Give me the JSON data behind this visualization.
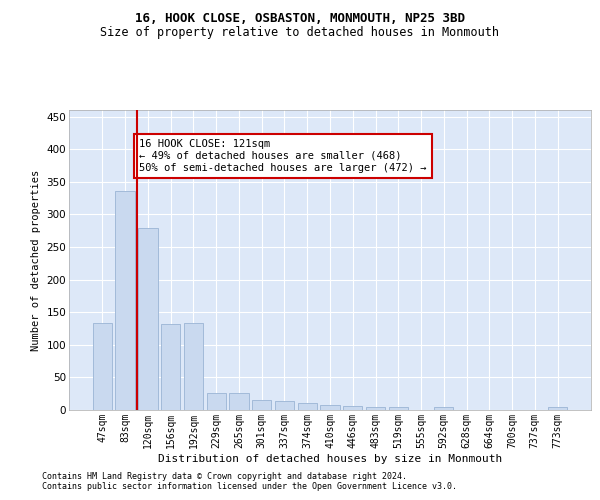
{
  "title1": "16, HOOK CLOSE, OSBASTON, MONMOUTH, NP25 3BD",
  "title2": "Size of property relative to detached houses in Monmouth",
  "xlabel": "Distribution of detached houses by size in Monmouth",
  "ylabel": "Number of detached properties",
  "categories": [
    "47sqm",
    "83sqm",
    "120sqm",
    "156sqm",
    "192sqm",
    "229sqm",
    "265sqm",
    "301sqm",
    "337sqm",
    "374sqm",
    "410sqm",
    "446sqm",
    "483sqm",
    "519sqm",
    "555sqm",
    "592sqm",
    "628sqm",
    "664sqm",
    "700sqm",
    "737sqm",
    "773sqm"
  ],
  "values": [
    133,
    336,
    279,
    132,
    133,
    26,
    26,
    15,
    14,
    11,
    7,
    6,
    5,
    4,
    0,
    4,
    0,
    0,
    0,
    0,
    4
  ],
  "bar_color": "#c9d9ef",
  "bar_edge_color": "#9ab4d4",
  "vline_color": "#cc0000",
  "vline_x_idx": 1,
  "annotation_text": "16 HOOK CLOSE: 121sqm\n← 49% of detached houses are smaller (468)\n50% of semi-detached houses are larger (472) →",
  "annotation_box_color": "#ffffff",
  "annotation_box_edge": "#cc0000",
  "footnote1": "Contains HM Land Registry data © Crown copyright and database right 2024.",
  "footnote2": "Contains public sector information licensed under the Open Government Licence v3.0.",
  "background_color": "#ffffff",
  "plot_bg_color": "#dde8f8",
  "grid_color": "#ffffff",
  "ylim": [
    0,
    460
  ],
  "yticks": [
    0,
    50,
    100,
    150,
    200,
    250,
    300,
    350,
    400,
    450
  ],
  "title1_fontsize": 9,
  "title2_fontsize": 8.5,
  "xlabel_fontsize": 8,
  "ylabel_fontsize": 7.5,
  "tick_fontsize": 7,
  "annot_fontsize": 7.5,
  "footnote_fontsize": 6
}
